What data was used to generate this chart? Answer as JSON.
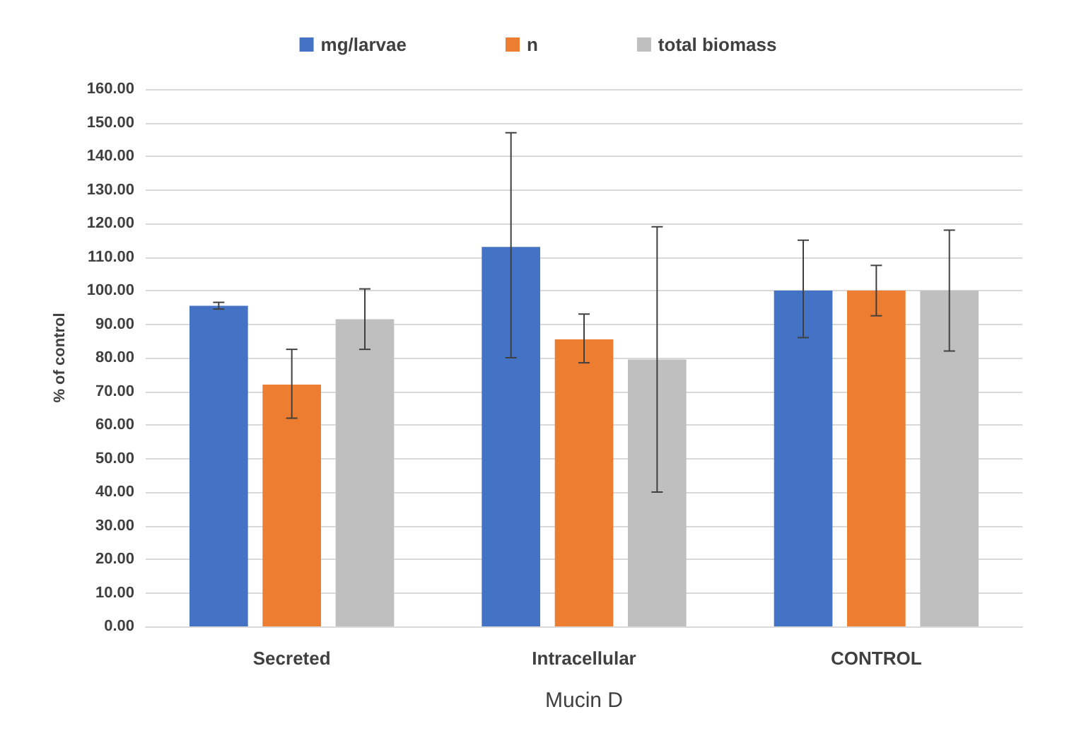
{
  "chart_data": {
    "type": "bar",
    "xlabel": "Mucin D",
    "ylabel": "% of control",
    "categories": [
      "Secreted",
      "Intracellular",
      "CONTROL"
    ],
    "series": [
      {
        "name": "mg/larvae",
        "color": "#4472c4",
        "values": [
          95.5,
          113,
          100
        ],
        "errors": [
          [
            94.5,
            96.5
          ],
          [
            80,
            147
          ],
          [
            86,
            115
          ]
        ]
      },
      {
        "name": "n",
        "color": "#ed7d31",
        "values": [
          72,
          85.5,
          100
        ],
        "errors": [
          [
            62,
            82.5
          ],
          [
            78.5,
            93
          ],
          [
            92.5,
            107.5
          ]
        ]
      },
      {
        "name": "total biomass",
        "color": "#bfbfbf",
        "values": [
          91.5,
          79.5,
          100
        ],
        "errors": [
          [
            82.5,
            100.5
          ],
          [
            40,
            119
          ],
          [
            82,
            118
          ]
        ]
      }
    ],
    "ylim": [
      0,
      160
    ],
    "yticks": [
      {
        "value": 0,
        "label": "0.00"
      },
      {
        "value": 10,
        "label": "10.00"
      },
      {
        "value": 20,
        "label": "20.00"
      },
      {
        "value": 30,
        "label": "30.00"
      },
      {
        "value": 40,
        "label": "40.00"
      },
      {
        "value": 50,
        "label": "50.00"
      },
      {
        "value": 60,
        "label": "60.00"
      },
      {
        "value": 70,
        "label": "70.00"
      },
      {
        "value": 80,
        "label": "80.00"
      },
      {
        "value": 90,
        "label": "90.00"
      },
      {
        "value": 100,
        "label": "100.00"
      },
      {
        "value": 110,
        "label": "110.00"
      },
      {
        "value": 120,
        "label": "120.00"
      },
      {
        "value": 130,
        "label": "130.00"
      },
      {
        "value": 140,
        "label": "140.00"
      },
      {
        "value": 150,
        "label": "150.00"
      },
      {
        "value": 160,
        "label": "160.00"
      }
    ],
    "grid": "y",
    "legend": "top"
  }
}
